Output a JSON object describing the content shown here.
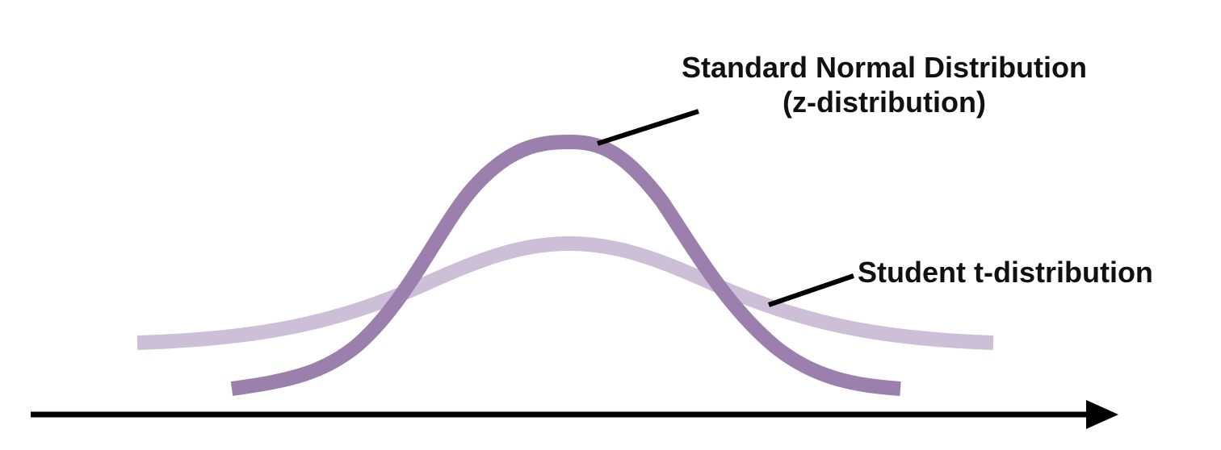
{
  "labels": {
    "normal_title": "Standard Normal Distribution",
    "normal_subtitle": "(z-distribution)",
    "t_title": "Student t-distribution"
  },
  "colors": {
    "normal_curve": "#9b80ad",
    "t_curve": "#cdbfd7",
    "axis": "#000000",
    "leader": "#000000",
    "text": "#111111"
  }
}
